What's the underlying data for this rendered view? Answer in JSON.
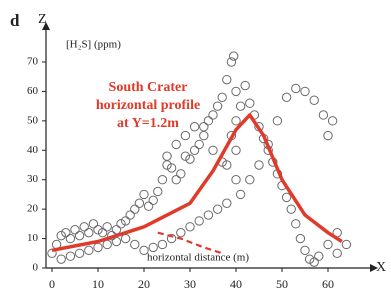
{
  "chart_data": {
    "type": "scatter",
    "panel_label": "d",
    "ylabel": "Z",
    "y_unit_label": "[H₂S] (ppm)",
    "xlabel": "horizontal distance (m)",
    "x_arrow_label": "X",
    "annotation": [
      "South Crater",
      "horizontal profile",
      "at Y=1.2m"
    ],
    "annotation_color": "#e03a2a",
    "xlim": [
      -2,
      67
    ],
    "ylim": [
      0,
      77
    ],
    "xticks": [
      0,
      10,
      20,
      30,
      40,
      50,
      60
    ],
    "yticks": [
      0,
      10,
      20,
      30,
      40,
      50,
      60,
      70
    ],
    "series": [
      {
        "type": "scatter",
        "color": "#6a6a6a",
        "x": [
          0,
          1,
          2,
          3,
          4,
          5,
          6,
          7,
          8,
          9,
          10,
          11,
          12,
          13,
          14,
          15,
          16,
          17,
          18,
          19,
          20,
          21,
          22,
          23,
          24,
          25,
          26,
          27,
          28,
          29,
          30,
          31,
          32,
          33,
          34,
          35,
          36,
          37,
          38,
          39,
          39.5,
          40,
          40,
          40,
          40,
          39,
          38,
          41,
          42,
          43,
          44,
          45,
          46,
          47,
          48,
          49,
          50,
          51,
          52,
          53,
          54,
          55,
          56,
          57,
          58,
          60,
          62,
          61,
          60,
          59,
          57,
          55,
          53,
          51,
          49,
          47,
          45,
          43,
          41,
          38,
          36,
          34,
          32,
          30,
          28,
          26,
          24,
          22,
          20,
          18,
          16,
          14,
          12,
          10,
          8,
          6,
          4,
          2,
          25,
          27,
          29,
          31,
          33,
          35,
          37,
          62,
          64
        ],
        "y": [
          5,
          8,
          11,
          12,
          10,
          13,
          11,
          14,
          12,
          15,
          13,
          12,
          14,
          11,
          13,
          15,
          16,
          18,
          20,
          22,
          25,
          21,
          23,
          26,
          30,
          35,
          34,
          30,
          32,
          38,
          37,
          40,
          42,
          48,
          50,
          52,
          55,
          58,
          64,
          70,
          72,
          60,
          50,
          40,
          30,
          45,
          35,
          55,
          62,
          56,
          52,
          48,
          44,
          40,
          36,
          32,
          28,
          24,
          20,
          15,
          10,
          6,
          3,
          2,
          4,
          8,
          12,
          50,
          45,
          52,
          57,
          60,
          61,
          58,
          50,
          42,
          35,
          30,
          25,
          22,
          20,
          18,
          16,
          14,
          12,
          10,
          8,
          7,
          6,
          8,
          10,
          9,
          8,
          7,
          6,
          5,
          4,
          3,
          38,
          42,
          45,
          48,
          45,
          40,
          36,
          5,
          8
        ]
      },
      {
        "type": "line",
        "color": "#e03a2a",
        "dashed": false,
        "x": [
          0,
          10,
          20,
          30,
          35,
          40,
          43,
          46,
          50,
          55,
          60,
          63
        ],
        "y": [
          6,
          9,
          14,
          22,
          33,
          47,
          52,
          45,
          30,
          18,
          12,
          9
        ]
      },
      {
        "type": "line",
        "color": "#e03a2a",
        "dashed": true,
        "x": [
          23,
          28,
          33,
          37
        ],
        "y": [
          12,
          10,
          7,
          5
        ]
      }
    ]
  }
}
